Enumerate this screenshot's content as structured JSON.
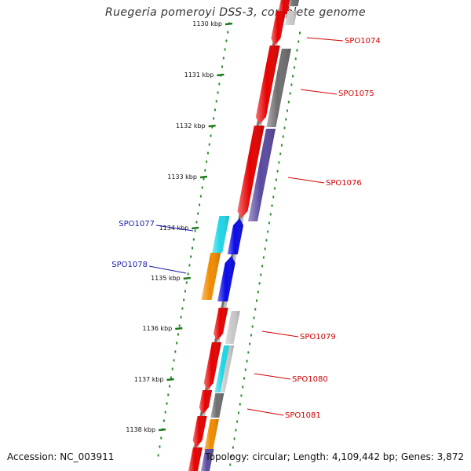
{
  "title": "Ruegeria pomeroyi DSS-3, complete genome",
  "footer": {
    "accession": "Accession: NC_003911",
    "summary": "Topology: circular; Length: 4,109,442 bp; Genes: 3,872"
  },
  "colors": {
    "backbone": "#9a9a9a",
    "ruler_dots": "#2e8b2e",
    "ruler_ticks": "#1a7a1a",
    "forward_label": "#d40000",
    "reverse_label": "#1a1aaa",
    "red": "#e60000",
    "grey": "#6e6e6e",
    "lightgrey": "#c8c8c8",
    "purple": "#5a4aa0",
    "cyan": "#1fd6e6",
    "blue": "#0a0ae6",
    "orange": "#f08a00"
  },
  "ruler": [
    {
      "label": "1130 kbp"
    },
    {
      "label": "1131 kbp"
    },
    {
      "label": "1132 kbp"
    },
    {
      "label": "1133 kbp"
    },
    {
      "label": "1134 kbp"
    },
    {
      "label": "1135 kbp"
    },
    {
      "label": "1136 kbp"
    },
    {
      "label": "1137 kbp"
    },
    {
      "label": "1138 kbp"
    }
  ],
  "genes": [
    {
      "label": "SPO1074",
      "strand": "forward"
    },
    {
      "label": "SPO1075",
      "strand": "forward"
    },
    {
      "label": "SPO1076",
      "strand": "forward"
    },
    {
      "label": "SPO1077",
      "strand": "reverse"
    },
    {
      "label": "SPO1078",
      "strand": "reverse"
    },
    {
      "label": "SPO1079",
      "strand": "forward"
    },
    {
      "label": "SPO1080",
      "strand": "forward"
    },
    {
      "label": "SPO1081",
      "strand": "forward"
    }
  ]
}
